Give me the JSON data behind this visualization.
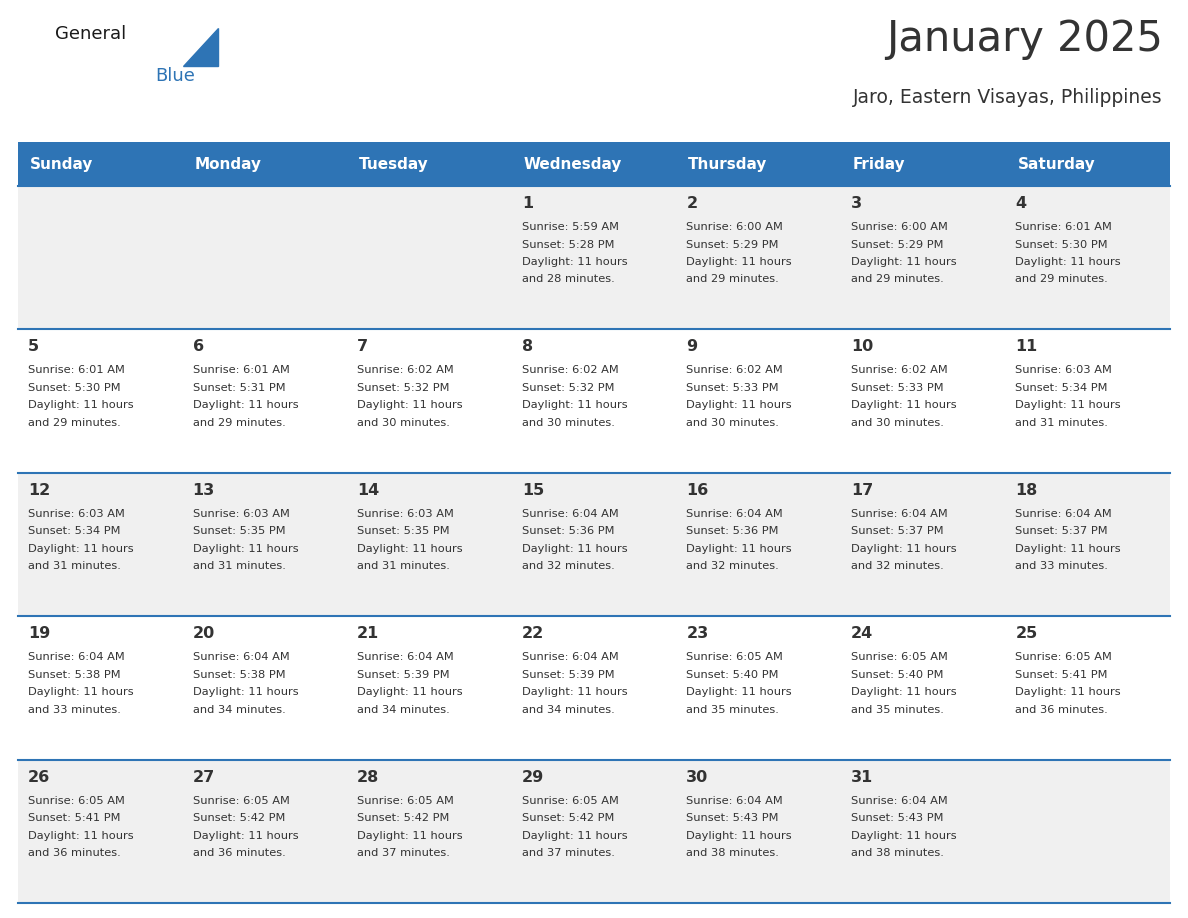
{
  "title": "January 2025",
  "subtitle": "Jaro, Eastern Visayas, Philippines",
  "header_bg": "#2E74B5",
  "header_text_color": "#FFFFFF",
  "row_bg_odd": "#F0F0F0",
  "row_bg_even": "#FFFFFF",
  "separator_color": "#2E74B5",
  "day_names": [
    "Sunday",
    "Monday",
    "Tuesday",
    "Wednesday",
    "Thursday",
    "Friday",
    "Saturday"
  ],
  "days": [
    {
      "day": 1,
      "col": 3,
      "row": 0,
      "sunrise": "5:59 AM",
      "sunset": "5:28 PM",
      "daylight_hours": 11,
      "daylight_minutes": 28
    },
    {
      "day": 2,
      "col": 4,
      "row": 0,
      "sunrise": "6:00 AM",
      "sunset": "5:29 PM",
      "daylight_hours": 11,
      "daylight_minutes": 29
    },
    {
      "day": 3,
      "col": 5,
      "row": 0,
      "sunrise": "6:00 AM",
      "sunset": "5:29 PM",
      "daylight_hours": 11,
      "daylight_minutes": 29
    },
    {
      "day": 4,
      "col": 6,
      "row": 0,
      "sunrise": "6:01 AM",
      "sunset": "5:30 PM",
      "daylight_hours": 11,
      "daylight_minutes": 29
    },
    {
      "day": 5,
      "col": 0,
      "row": 1,
      "sunrise": "6:01 AM",
      "sunset": "5:30 PM",
      "daylight_hours": 11,
      "daylight_minutes": 29
    },
    {
      "day": 6,
      "col": 1,
      "row": 1,
      "sunrise": "6:01 AM",
      "sunset": "5:31 PM",
      "daylight_hours": 11,
      "daylight_minutes": 29
    },
    {
      "day": 7,
      "col": 2,
      "row": 1,
      "sunrise": "6:02 AM",
      "sunset": "5:32 PM",
      "daylight_hours": 11,
      "daylight_minutes": 30
    },
    {
      "day": 8,
      "col": 3,
      "row": 1,
      "sunrise": "6:02 AM",
      "sunset": "5:32 PM",
      "daylight_hours": 11,
      "daylight_minutes": 30
    },
    {
      "day": 9,
      "col": 4,
      "row": 1,
      "sunrise": "6:02 AM",
      "sunset": "5:33 PM",
      "daylight_hours": 11,
      "daylight_minutes": 30
    },
    {
      "day": 10,
      "col": 5,
      "row": 1,
      "sunrise": "6:02 AM",
      "sunset": "5:33 PM",
      "daylight_hours": 11,
      "daylight_minutes": 30
    },
    {
      "day": 11,
      "col": 6,
      "row": 1,
      "sunrise": "6:03 AM",
      "sunset": "5:34 PM",
      "daylight_hours": 11,
      "daylight_minutes": 31
    },
    {
      "day": 12,
      "col": 0,
      "row": 2,
      "sunrise": "6:03 AM",
      "sunset": "5:34 PM",
      "daylight_hours": 11,
      "daylight_minutes": 31
    },
    {
      "day": 13,
      "col": 1,
      "row": 2,
      "sunrise": "6:03 AM",
      "sunset": "5:35 PM",
      "daylight_hours": 11,
      "daylight_minutes": 31
    },
    {
      "day": 14,
      "col": 2,
      "row": 2,
      "sunrise": "6:03 AM",
      "sunset": "5:35 PM",
      "daylight_hours": 11,
      "daylight_minutes": 31
    },
    {
      "day": 15,
      "col": 3,
      "row": 2,
      "sunrise": "6:04 AM",
      "sunset": "5:36 PM",
      "daylight_hours": 11,
      "daylight_minutes": 32
    },
    {
      "day": 16,
      "col": 4,
      "row": 2,
      "sunrise": "6:04 AM",
      "sunset": "5:36 PM",
      "daylight_hours": 11,
      "daylight_minutes": 32
    },
    {
      "day": 17,
      "col": 5,
      "row": 2,
      "sunrise": "6:04 AM",
      "sunset": "5:37 PM",
      "daylight_hours": 11,
      "daylight_minutes": 32
    },
    {
      "day": 18,
      "col": 6,
      "row": 2,
      "sunrise": "6:04 AM",
      "sunset": "5:37 PM",
      "daylight_hours": 11,
      "daylight_minutes": 33
    },
    {
      "day": 19,
      "col": 0,
      "row": 3,
      "sunrise": "6:04 AM",
      "sunset": "5:38 PM",
      "daylight_hours": 11,
      "daylight_minutes": 33
    },
    {
      "day": 20,
      "col": 1,
      "row": 3,
      "sunrise": "6:04 AM",
      "sunset": "5:38 PM",
      "daylight_hours": 11,
      "daylight_minutes": 34
    },
    {
      "day": 21,
      "col": 2,
      "row": 3,
      "sunrise": "6:04 AM",
      "sunset": "5:39 PM",
      "daylight_hours": 11,
      "daylight_minutes": 34
    },
    {
      "day": 22,
      "col": 3,
      "row": 3,
      "sunrise": "6:04 AM",
      "sunset": "5:39 PM",
      "daylight_hours": 11,
      "daylight_minutes": 34
    },
    {
      "day": 23,
      "col": 4,
      "row": 3,
      "sunrise": "6:05 AM",
      "sunset": "5:40 PM",
      "daylight_hours": 11,
      "daylight_minutes": 35
    },
    {
      "day": 24,
      "col": 5,
      "row": 3,
      "sunrise": "6:05 AM",
      "sunset": "5:40 PM",
      "daylight_hours": 11,
      "daylight_minutes": 35
    },
    {
      "day": 25,
      "col": 6,
      "row": 3,
      "sunrise": "6:05 AM",
      "sunset": "5:41 PM",
      "daylight_hours": 11,
      "daylight_minutes": 36
    },
    {
      "day": 26,
      "col": 0,
      "row": 4,
      "sunrise": "6:05 AM",
      "sunset": "5:41 PM",
      "daylight_hours": 11,
      "daylight_minutes": 36
    },
    {
      "day": 27,
      "col": 1,
      "row": 4,
      "sunrise": "6:05 AM",
      "sunset": "5:42 PM",
      "daylight_hours": 11,
      "daylight_minutes": 36
    },
    {
      "day": 28,
      "col": 2,
      "row": 4,
      "sunrise": "6:05 AM",
      "sunset": "5:42 PM",
      "daylight_hours": 11,
      "daylight_minutes": 37
    },
    {
      "day": 29,
      "col": 3,
      "row": 4,
      "sunrise": "6:05 AM",
      "sunset": "5:42 PM",
      "daylight_hours": 11,
      "daylight_minutes": 37
    },
    {
      "day": 30,
      "col": 4,
      "row": 4,
      "sunrise": "6:04 AM",
      "sunset": "5:43 PM",
      "daylight_hours": 11,
      "daylight_minutes": 38
    },
    {
      "day": 31,
      "col": 5,
      "row": 4,
      "sunrise": "6:04 AM",
      "sunset": "5:43 PM",
      "daylight_hours": 11,
      "daylight_minutes": 38
    }
  ],
  "num_rows": 5,
  "text_color": "#333333",
  "logo_general_color": "#1a1a1a",
  "logo_blue_color": "#2E74B5"
}
